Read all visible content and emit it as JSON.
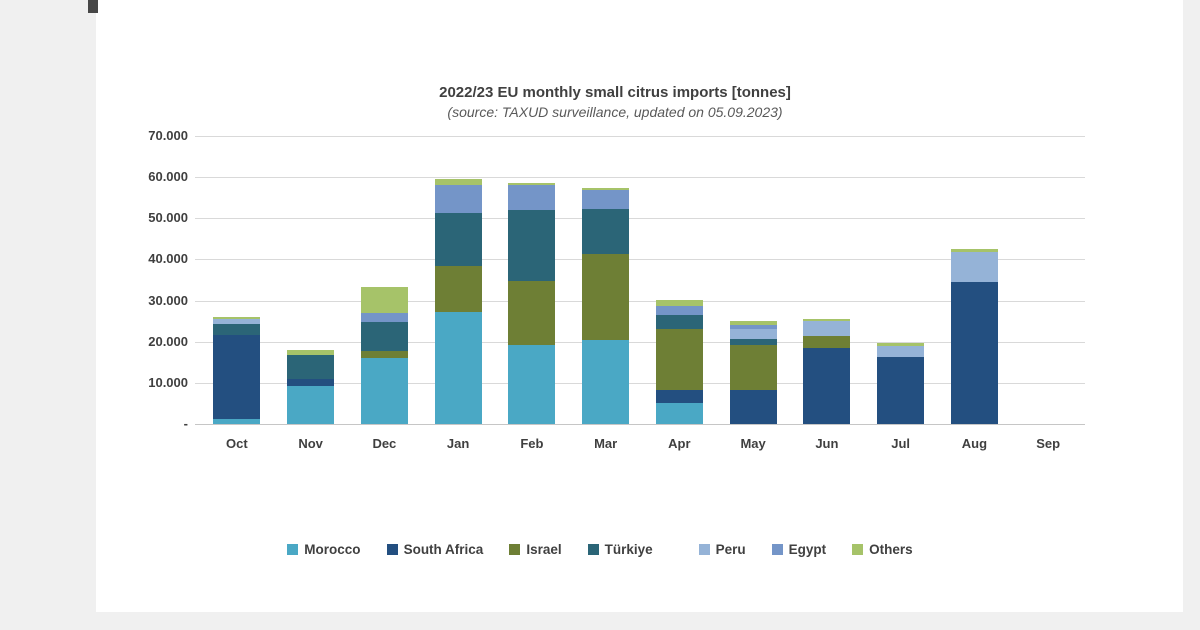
{
  "frame": {
    "left_margin_color": "#f0f0f0",
    "right_margin_color": "#f0f0f0",
    "bottom_margin_color": "#f0f0f0",
    "corner_tab_color": "#474747"
  },
  "chart_data": {
    "type": "bar",
    "stacked": true,
    "title": "2022/23 EU monthly small citrus imports [tonnes]",
    "subtitle": "(source: TAXUD surveillance, updated on 05.09.2023)",
    "categories": [
      "Oct",
      "Nov",
      "Dec",
      "Jan",
      "Feb",
      "Mar",
      "Apr",
      "May",
      "Jun",
      "Jul",
      "Aug",
      "Sep"
    ],
    "series": [
      {
        "name": "Morocco",
        "color": "#4AA8C5",
        "values": [
          1200,
          9200,
          16000,
          27300,
          19200,
          20400,
          5000,
          0,
          0,
          0,
          0,
          0
        ]
      },
      {
        "name": "South Africa",
        "color": "#234F80",
        "values": [
          20500,
          1700,
          0,
          0,
          0,
          0,
          3200,
          8300,
          18400,
          16400,
          34600,
          0
        ]
      },
      {
        "name": "Israel",
        "color": "#6E7F35",
        "values": [
          0,
          0,
          1800,
          11200,
          15500,
          20900,
          14800,
          10900,
          3100,
          0,
          0,
          0
        ]
      },
      {
        "name": "Türkiye",
        "color": "#2B6577",
        "values": [
          2500,
          5800,
          7000,
          12700,
          17300,
          10900,
          3400,
          1500,
          0,
          0,
          0,
          0
        ]
      },
      {
        "name": "Peru",
        "color": "#95B3D7",
        "values": [
          1300,
          0,
          0,
          0,
          0,
          0,
          0,
          2400,
          3600,
          2600,
          7100,
          0
        ]
      },
      {
        "name": "Egypt",
        "color": "#7495C8",
        "values": [
          0,
          0,
          2300,
          7000,
          6200,
          4600,
          2200,
          1000,
          0,
          0,
          0,
          0
        ]
      },
      {
        "name": "Others",
        "color": "#A6C369",
        "values": [
          500,
          1200,
          6100,
          1300,
          300,
          600,
          1500,
          1000,
          500,
          800,
          800,
          0
        ]
      }
    ],
    "ylim": [
      0,
      70000
    ],
    "ytick_interval": 10000,
    "ytick_labels": [
      "-",
      "10.000",
      "20.000",
      "30.000",
      "40.000",
      "50.000",
      "60.000",
      "70.000"
    ],
    "grid": true,
    "legend_position": "bottom",
    "legend_extra_gap_before": "Peru"
  }
}
